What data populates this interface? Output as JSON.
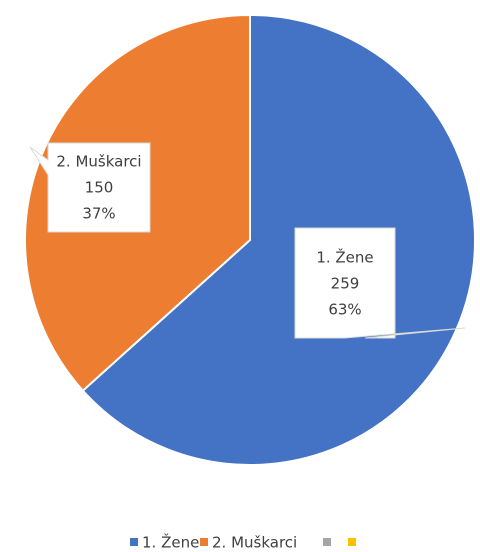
{
  "chart_data": {
    "type": "pie",
    "categories": [
      "1. Žene",
      "2. Muškarci",
      null,
      null
    ],
    "values": [
      259,
      150,
      null,
      null
    ],
    "percents": [
      63,
      37,
      null,
      null
    ],
    "percent_labels": [
      "63%",
      "37%",
      null,
      null
    ],
    "colors": [
      "#4472c4",
      "#ed7d31",
      "#a5a5a5",
      "#ffc000"
    ],
    "legend": "bottom"
  }
}
